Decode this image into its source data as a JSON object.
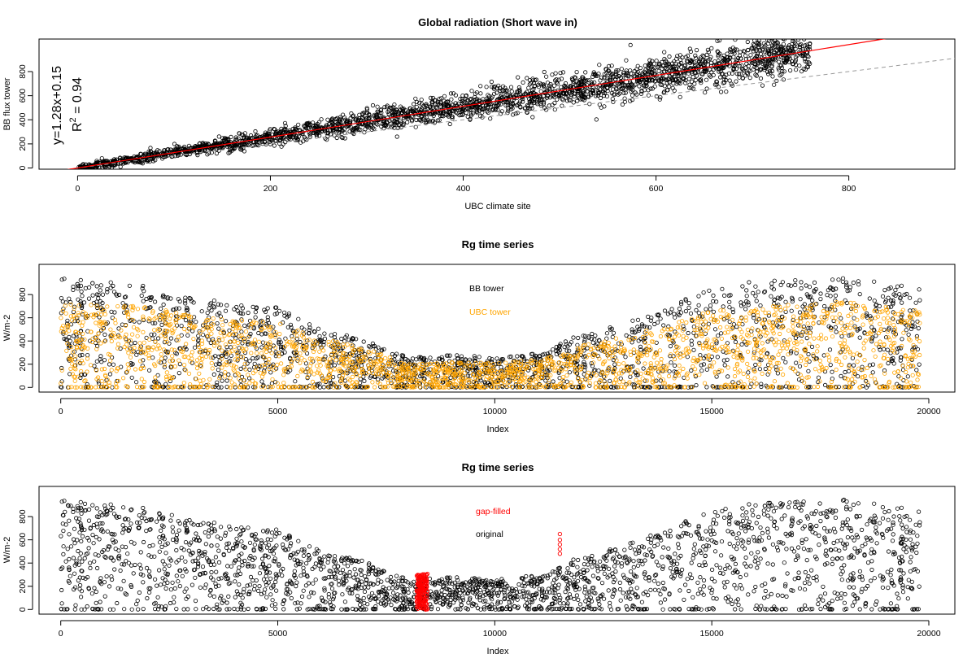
{
  "chart_data": [
    {
      "type": "scatter",
      "title": "Global radiation (Short wave in)",
      "xlabel": "UBC climate site",
      "ylabel": "BB flux tower",
      "xlim": [
        -40,
        910
      ],
      "ylim": [
        -10,
        1070
      ],
      "xticks": [
        0,
        200,
        400,
        600,
        800
      ],
      "yticks": [
        0,
        200,
        400,
        600,
        800
      ],
      "annotation": {
        "equation": "y=1.28x+0.15",
        "r2_prefix": "R",
        "r2_exp": "2",
        "r2_value": " = 0.94"
      },
      "series": [
        {
          "points_approx": [
            [
              0,
              0
            ],
            [
              50,
              70
            ],
            [
              100,
              130
            ],
            [
              150,
              190
            ],
            [
              200,
              255
            ],
            [
              250,
              320
            ],
            [
              300,
              385
            ],
            [
              350,
              450
            ],
            [
              400,
              510
            ],
            [
              450,
              580
            ],
            [
              500,
              640
            ],
            [
              550,
              705
            ],
            [
              600,
              770
            ],
            [
              650,
              830
            ],
            [
              700,
              895
            ]
          ]
        }
      ],
      "fit_line": {
        "slope": 1.28,
        "intercept": 0.15,
        "color": "#ff0000"
      },
      "one_to_one_line": {
        "slope": 1,
        "intercept": 0,
        "color": "#999999",
        "style": "dashed"
      },
      "marker_color": "#000000",
      "grid": false
    },
    {
      "type": "scatter",
      "title": "Rg time series",
      "xlabel": "Index",
      "ylabel": "W/m-2",
      "xlim": [
        -500,
        20600
      ],
      "ylim": [
        -40,
        1060
      ],
      "xticks": [
        0,
        5000,
        10000,
        15000,
        20000
      ],
      "yticks": [
        0,
        200,
        400,
        600,
        800
      ],
      "legend": [
        {
          "label": "BB tower",
          "color": "#000000"
        },
        {
          "label": "UBC tower",
          "color": "#ffa500"
        }
      ],
      "series": [
        {
          "name": "BB tower",
          "color": "#000000",
          "envelope_x": [
            0,
            1000,
            2000,
            3000,
            4000,
            5000,
            6000,
            7000,
            8000,
            9000,
            10000,
            11000,
            12000,
            13000,
            14000,
            15000,
            16000,
            17000,
            18000,
            19000,
            19800
          ],
          "envelope_y": [
            950,
            920,
            880,
            780,
            720,
            690,
            500,
            420,
            260,
            280,
            260,
            300,
            460,
            560,
            700,
            870,
            920,
            930,
            960,
            900,
            850
          ]
        },
        {
          "name": "UBC tower",
          "color": "#ffa500",
          "envelope_x": [
            0,
            1000,
            2000,
            3000,
            4000,
            5000,
            6000,
            7000,
            8000,
            9000,
            10000,
            11000,
            12000,
            13000,
            14000,
            15000,
            16000,
            17000,
            18000,
            19000,
            19800
          ],
          "envelope_y": [
            720,
            720,
            700,
            620,
            580,
            560,
            420,
            340,
            200,
            220,
            210,
            240,
            380,
            440,
            540,
            660,
            700,
            720,
            740,
            700,
            660
          ]
        }
      ],
      "grid": false
    },
    {
      "type": "scatter",
      "title": "Rg time series",
      "xlabel": "Index",
      "ylabel": "W/m-2",
      "xlim": [
        -500,
        20600
      ],
      "ylim": [
        -40,
        1060
      ],
      "xticks": [
        0,
        5000,
        10000,
        15000,
        20000
      ],
      "yticks": [
        0,
        200,
        400,
        600,
        800
      ],
      "legend": [
        {
          "label": "gap-filled",
          "color": "#ff0000"
        },
        {
          "label": "original",
          "color": "#000000"
        }
      ],
      "series": [
        {
          "name": "original",
          "color": "#000000",
          "envelope_x": [
            0,
            1000,
            2000,
            3000,
            4000,
            5000,
            6000,
            7000,
            8000,
            9000,
            10000,
            11000,
            12000,
            13000,
            14000,
            15000,
            16000,
            17000,
            18000,
            19000,
            19800
          ],
          "envelope_y": [
            950,
            920,
            880,
            780,
            720,
            690,
            500,
            420,
            260,
            280,
            260,
            300,
            460,
            560,
            700,
            870,
            920,
            930,
            960,
            900,
            850
          ]
        },
        {
          "name": "gap-filled",
          "color": "#ff0000",
          "x_range": [
            8200,
            8450
          ],
          "y_max": 310,
          "extra_points": [
            [
              11500,
              650
            ],
            [
              11500,
              600
            ],
            [
              11500,
              560
            ],
            [
              11500,
              520
            ],
            [
              11500,
              480
            ]
          ]
        }
      ],
      "grid": false
    }
  ]
}
